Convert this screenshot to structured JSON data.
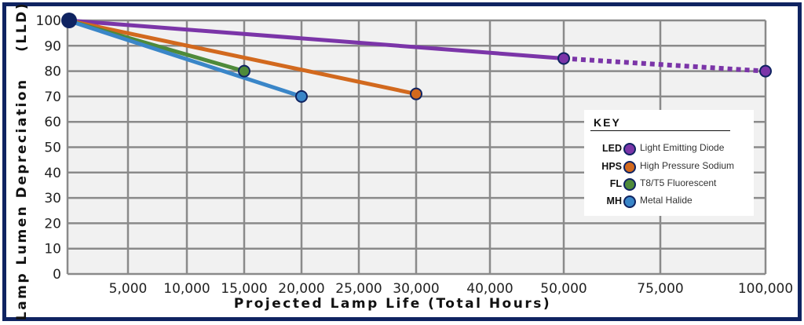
{
  "chart_data": {
    "type": "line",
    "xlabel": "Projected Lamp Life (Total Hours)",
    "ylabel": "Lamp Lumen Depreciation    (LLD)",
    "x_ticks": [
      5000,
      10000,
      15000,
      20000,
      25000,
      30000,
      40000,
      50000,
      75000,
      100000
    ],
    "x_tick_labels": [
      "5,000",
      "10,000",
      "15,000",
      "20,000",
      "25,000",
      "30,000",
      "40,000",
      "50,000",
      "75,000",
      "100,000"
    ],
    "y_ticks": [
      0,
      10,
      20,
      30,
      40,
      50,
      60,
      70,
      80,
      90,
      100
    ],
    "ylim": [
      0,
      100
    ],
    "x_scale": "categorical-spaced",
    "grid": true,
    "legend_position": "lower-right",
    "series": [
      {
        "name": "LED",
        "label": "Light Emitting Diode",
        "color": "#7b35a8",
        "points": [
          [
            0,
            100
          ],
          [
            50000,
            85
          ]
        ],
        "projected": [
          [
            50000,
            85
          ],
          [
            100000,
            80
          ]
        ]
      },
      {
        "name": "HPS",
        "label": "High Pressure Sodium",
        "color": "#d2691e",
        "points": [
          [
            0,
            100
          ],
          [
            30000,
            71
          ]
        ]
      },
      {
        "name": "FL",
        "label": "T8/T5 Fluorescent",
        "color": "#4e8a3a",
        "points": [
          [
            0,
            100
          ],
          [
            15000,
            80
          ]
        ]
      },
      {
        "name": "MH",
        "label": "Metal Halide",
        "color": "#3a86c8",
        "points": [
          [
            0,
            100
          ],
          [
            20000,
            70
          ]
        ]
      }
    ],
    "origin_marker_color": "#0f2361",
    "legend_title": "KEY"
  }
}
